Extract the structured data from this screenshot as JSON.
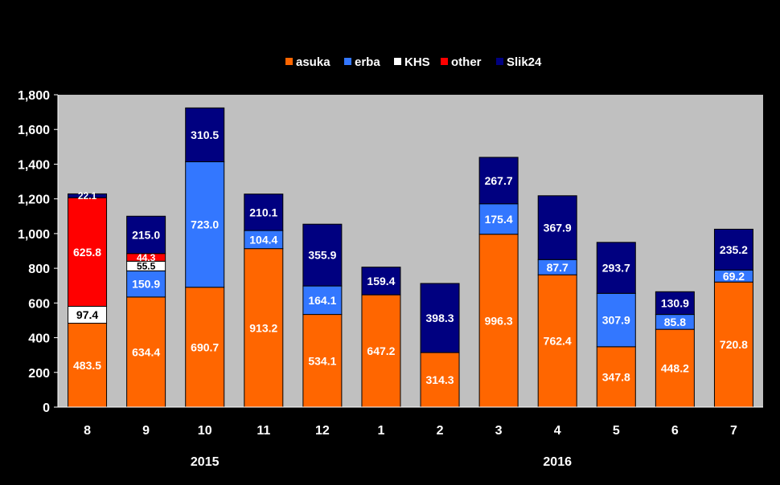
{
  "chart_data": {
    "type": "bar",
    "stacked": true,
    "categories": [
      "8",
      "9",
      "10",
      "11",
      "12",
      "1",
      "2",
      "3",
      "4",
      "5",
      "6",
      "7"
    ],
    "year_labels": [
      {
        "label": "2015",
        "after_category_index": 2
      },
      {
        "label": "2016",
        "after_category_index": 8
      }
    ],
    "ylim": [
      0,
      1800
    ],
    "yticks": [
      "0",
      "200",
      "400",
      "600",
      "800",
      "1,000",
      "1,200",
      "1,400",
      "1,600",
      "1,800"
    ],
    "ytick_values": [
      0,
      200,
      400,
      600,
      800,
      1000,
      1200,
      1400,
      1600,
      1800
    ],
    "legend_position": "top-center",
    "grid": false,
    "series": [
      {
        "name": "asuka",
        "color": "#ff6600",
        "values": [
          483.5,
          634.4,
          690.7,
          913.2,
          534.1,
          647.2,
          314.3,
          996.3,
          762.4,
          347.8,
          448.2,
          720.8
        ]
      },
      {
        "name": "erba",
        "color": "#3377ff",
        "values": [
          null,
          150.9,
          723.0,
          104.4,
          164.1,
          null,
          null,
          175.4,
          87.7,
          307.9,
          85.8,
          69.2
        ]
      },
      {
        "name": "KHS",
        "color": "#ffffff",
        "values": [
          97.4,
          55.5,
          null,
          null,
          null,
          null,
          null,
          null,
          null,
          null,
          null,
          null
        ]
      },
      {
        "name": "other",
        "color": "#ff0000",
        "values": [
          625.8,
          44.3,
          null,
          null,
          null,
          null,
          null,
          null,
          null,
          null,
          null,
          null
        ]
      },
      {
        "name": "Slik24",
        "color": "#000080",
        "values": [
          22.1,
          215.0,
          310.5,
          210.1,
          355.9,
          159.4,
          398.3,
          267.7,
          367.9,
          293.7,
          130.9,
          235.2
        ]
      }
    ]
  }
}
